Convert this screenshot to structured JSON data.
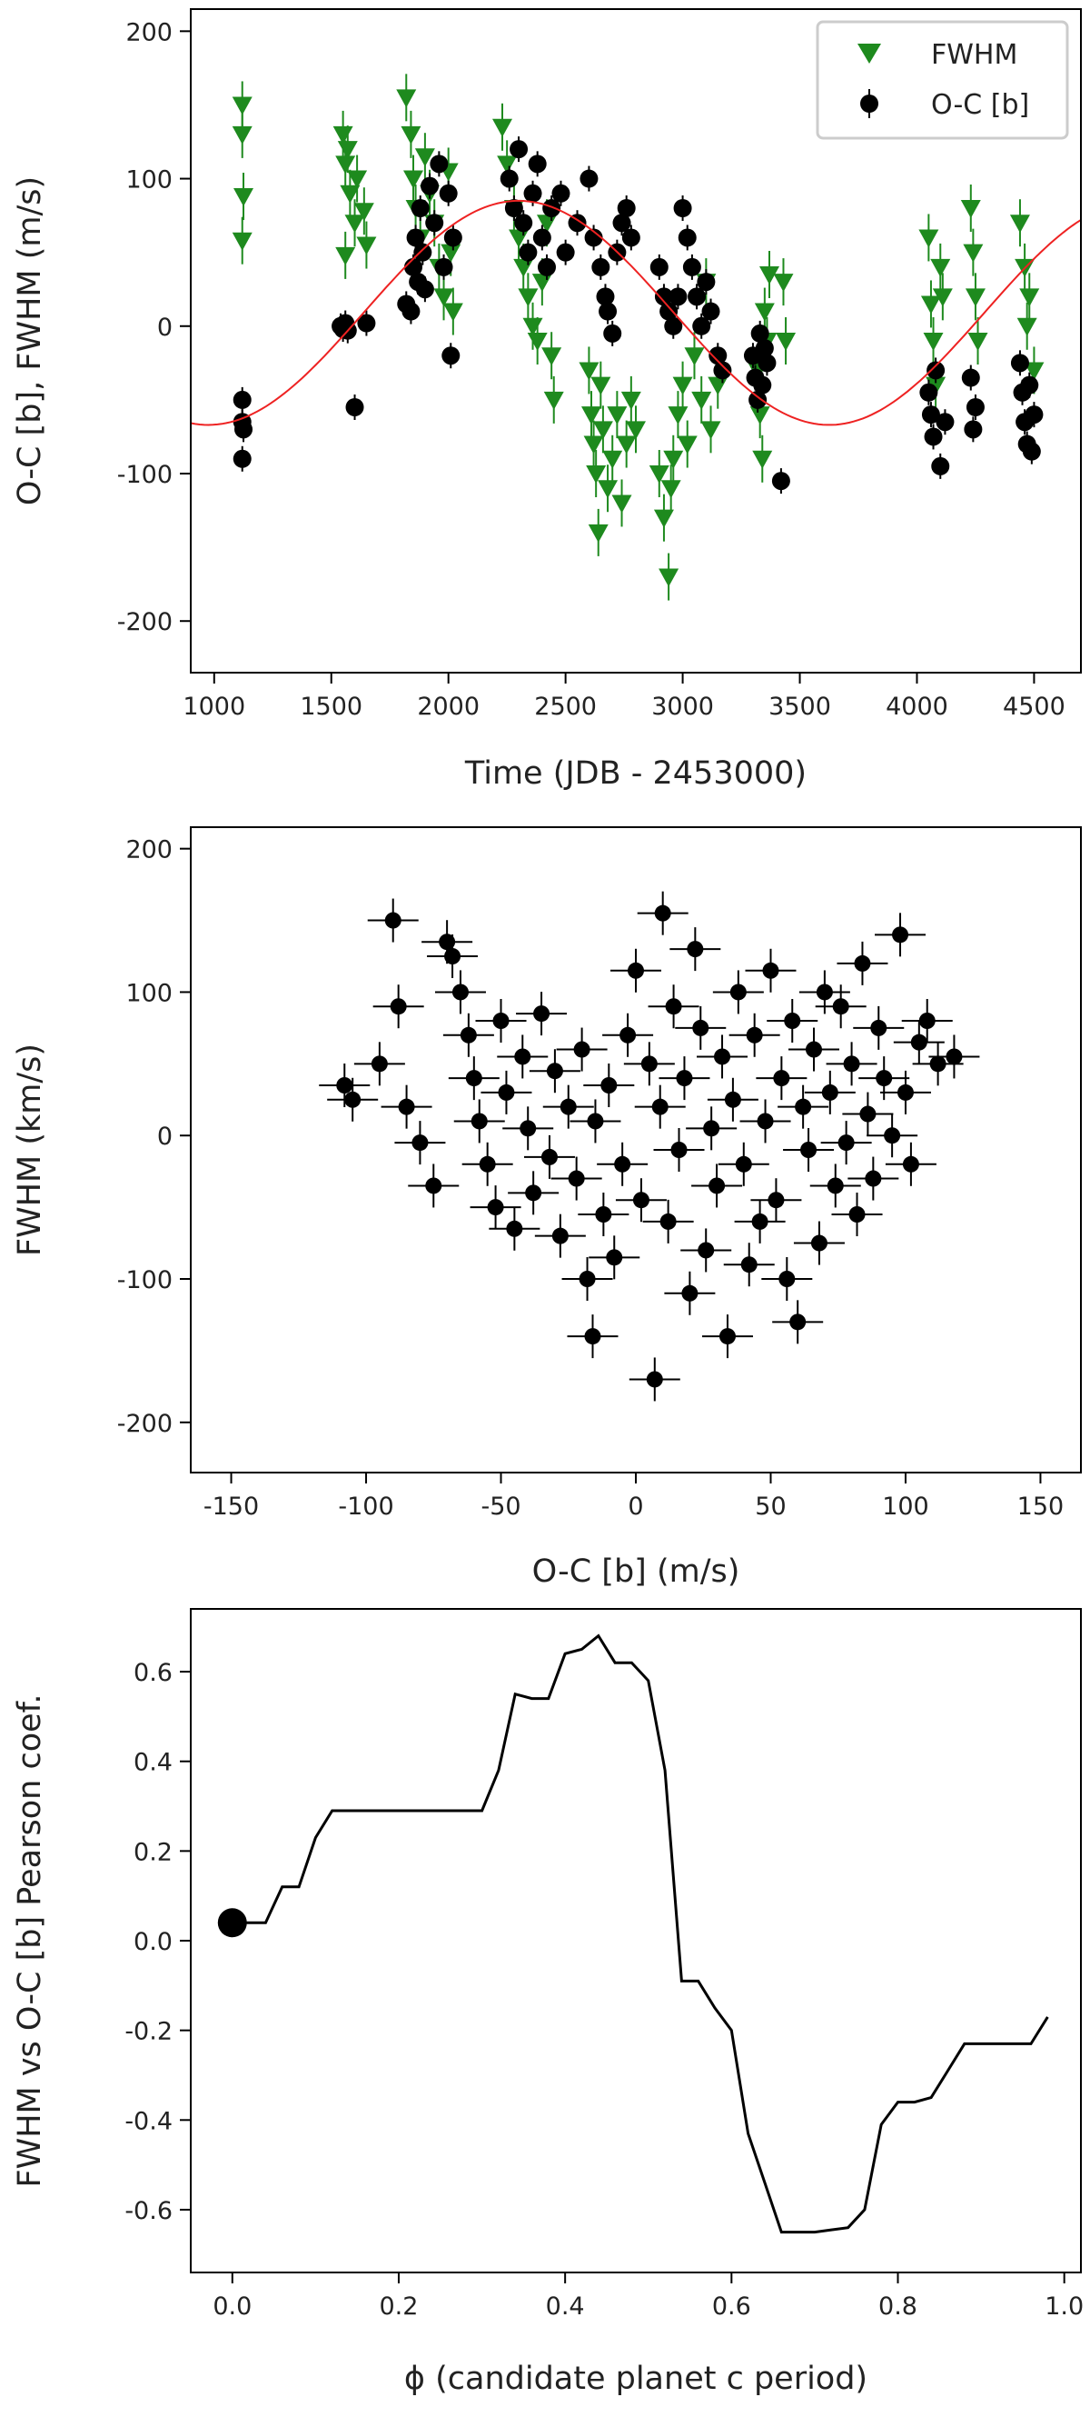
{
  "chart_data": [
    {
      "type": "scatter",
      "xlabel": "Time (JDB - 2453000)",
      "ylabel": "O-C [b], FWHM (m/s)",
      "xlim": [
        900,
        4700
      ],
      "ylim": [
        -235,
        215
      ],
      "xticks": [
        1000,
        1500,
        2000,
        2500,
        3000,
        3500,
        4000,
        4500
      ],
      "yticks": [
        -200,
        -100,
        0,
        100,
        200
      ],
      "legend_position": "top-right",
      "colors": {
        "fwhm": "#1e8a1e",
        "oc": "#000000",
        "fit": "#ee2222"
      },
      "series": [
        {
          "name": "FWHM",
          "marker": "triangle-down",
          "points": [
            [
              1120,
              150
            ],
            [
              1120,
              130
            ],
            [
              1125,
              88
            ],
            [
              1120,
              58
            ],
            [
              1550,
              130
            ],
            [
              1560,
              110
            ],
            [
              1570,
              120
            ],
            [
              1580,
              90
            ],
            [
              1560,
              48
            ],
            [
              1600,
              70
            ],
            [
              1610,
              100
            ],
            [
              1640,
              78
            ],
            [
              1650,
              55
            ],
            [
              1820,
              155
            ],
            [
              1840,
              130
            ],
            [
              1850,
              100
            ],
            [
              1860,
              80
            ],
            [
              1880,
              60
            ],
            [
              1900,
              115
            ],
            [
              1920,
              90
            ],
            [
              1940,
              70
            ],
            [
              1960,
              40
            ],
            [
              1980,
              20
            ],
            [
              2000,
              105
            ],
            [
              2010,
              50
            ],
            [
              2020,
              10
            ],
            [
              2230,
              135
            ],
            [
              2250,
              110
            ],
            [
              2280,
              80
            ],
            [
              2300,
              60
            ],
            [
              2320,
              40
            ],
            [
              2340,
              20
            ],
            [
              2360,
              0
            ],
            [
              2380,
              -10
            ],
            [
              2400,
              30
            ],
            [
              2420,
              70
            ],
            [
              2440,
              -20
            ],
            [
              2450,
              -50
            ],
            [
              2600,
              -30
            ],
            [
              2610,
              -60
            ],
            [
              2620,
              -80
            ],
            [
              2630,
              -100
            ],
            [
              2640,
              -140
            ],
            [
              2650,
              -40
            ],
            [
              2660,
              -70
            ],
            [
              2680,
              -110
            ],
            [
              2700,
              -90
            ],
            [
              2720,
              -60
            ],
            [
              2740,
              -120
            ],
            [
              2760,
              -80
            ],
            [
              2780,
              -50
            ],
            [
              2800,
              -70
            ],
            [
              2900,
              -100
            ],
            [
              2920,
              -130
            ],
            [
              2940,
              -170
            ],
            [
              2950,
              -110
            ],
            [
              2960,
              -90
            ],
            [
              2980,
              -60
            ],
            [
              3000,
              -40
            ],
            [
              3020,
              -80
            ],
            [
              3050,
              -20
            ],
            [
              3080,
              -50
            ],
            [
              3100,
              30
            ],
            [
              3120,
              -70
            ],
            [
              3150,
              -40
            ],
            [
              3320,
              -30
            ],
            [
              3330,
              -60
            ],
            [
              3340,
              -90
            ],
            [
              3350,
              10
            ],
            [
              3360,
              -10
            ],
            [
              3370,
              35
            ],
            [
              3430,
              30
            ],
            [
              3440,
              -10
            ],
            [
              4050,
              60
            ],
            [
              4060,
              15
            ],
            [
              4070,
              -10
            ],
            [
              4080,
              -40
            ],
            [
              4100,
              40
            ],
            [
              4110,
              20
            ],
            [
              4230,
              80
            ],
            [
              4240,
              50
            ],
            [
              4250,
              20
            ],
            [
              4260,
              -10
            ],
            [
              4440,
              70
            ],
            [
              4460,
              40
            ],
            [
              4470,
              0
            ],
            [
              4480,
              20
            ],
            [
              4500,
              -30
            ]
          ]
        },
        {
          "name": "O-C [b]",
          "marker": "circle",
          "points": [
            [
              1120,
              -50
            ],
            [
              1120,
              -65
            ],
            [
              1125,
              -70
            ],
            [
              1120,
              -90
            ],
            [
              1540,
              0
            ],
            [
              1550,
              -2
            ],
            [
              1560,
              2
            ],
            [
              1570,
              -3
            ],
            [
              1600,
              -55
            ],
            [
              1650,
              2
            ],
            [
              1820,
              15
            ],
            [
              1840,
              10
            ],
            [
              1850,
              40
            ],
            [
              1860,
              60
            ],
            [
              1870,
              30
            ],
            [
              1880,
              80
            ],
            [
              1890,
              50
            ],
            [
              1900,
              25
            ],
            [
              1920,
              95
            ],
            [
              1940,
              70
            ],
            [
              1960,
              110
            ],
            [
              1980,
              40
            ],
            [
              2000,
              90
            ],
            [
              2010,
              -20
            ],
            [
              2020,
              60
            ],
            [
              2260,
              100
            ],
            [
              2280,
              80
            ],
            [
              2300,
              120
            ],
            [
              2320,
              70
            ],
            [
              2340,
              50
            ],
            [
              2360,
              90
            ],
            [
              2380,
              110
            ],
            [
              2400,
              60
            ],
            [
              2420,
              40
            ],
            [
              2440,
              80
            ],
            [
              2480,
              90
            ],
            [
              2500,
              50
            ],
            [
              2550,
              70
            ],
            [
              2600,
              100
            ],
            [
              2620,
              60
            ],
            [
              2650,
              40
            ],
            [
              2670,
              20
            ],
            [
              2680,
              10
            ],
            [
              2700,
              -5
            ],
            [
              2720,
              50
            ],
            [
              2740,
              70
            ],
            [
              2760,
              80
            ],
            [
              2780,
              60
            ],
            [
              2900,
              40
            ],
            [
              2920,
              20
            ],
            [
              2940,
              10
            ],
            [
              2960,
              0
            ],
            [
              2980,
              20
            ],
            [
              3000,
              80
            ],
            [
              3020,
              60
            ],
            [
              3040,
              40
            ],
            [
              3060,
              20
            ],
            [
              3080,
              0
            ],
            [
              3100,
              30
            ],
            [
              3120,
              10
            ],
            [
              3150,
              -20
            ],
            [
              3170,
              -30
            ],
            [
              3300,
              -20
            ],
            [
              3310,
              -35
            ],
            [
              3320,
              -50
            ],
            [
              3330,
              -5
            ],
            [
              3340,
              -40
            ],
            [
              3350,
              -15
            ],
            [
              3360,
              -25
            ],
            [
              3420,
              -105
            ],
            [
              4050,
              -45
            ],
            [
              4060,
              -60
            ],
            [
              4070,
              -75
            ],
            [
              4080,
              -30
            ],
            [
              4100,
              -95
            ],
            [
              4120,
              -65
            ],
            [
              4230,
              -35
            ],
            [
              4240,
              -70
            ],
            [
              4250,
              -55
            ],
            [
              4440,
              -25
            ],
            [
              4450,
              -45
            ],
            [
              4460,
              -65
            ],
            [
              4470,
              -80
            ],
            [
              4480,
              -40
            ],
            [
              4490,
              -85
            ],
            [
              4500,
              -60
            ]
          ]
        }
      ],
      "fit_curve": {
        "amplitude": 76,
        "offset": 9,
        "period": 2650,
        "peak_x": 2300
      }
    },
    {
      "type": "scatter",
      "xlabel": "O-C [b] (m/s)",
      "ylabel": "FWHM (km/s)",
      "xlim": [
        -165,
        165
      ],
      "ylim": [
        -235,
        215
      ],
      "xticks": [
        -150,
        -100,
        -50,
        0,
        50,
        100,
        150
      ],
      "yticks": [
        -200,
        -100,
        0,
        100,
        200
      ],
      "points": [
        [
          -108,
          35
        ],
        [
          -105,
          25
        ],
        [
          -95,
          50
        ],
        [
          -90,
          150
        ],
        [
          -88,
          90
        ],
        [
          -85,
          20
        ],
        [
          -80,
          -5
        ],
        [
          -75,
          -35
        ],
        [
          -70,
          135
        ],
        [
          -68,
          125
        ],
        [
          -65,
          100
        ],
        [
          -62,
          70
        ],
        [
          -60,
          40
        ],
        [
          -58,
          10
        ],
        [
          -55,
          -20
        ],
        [
          -52,
          -50
        ],
        [
          -50,
          80
        ],
        [
          -48,
          30
        ],
        [
          -45,
          -65
        ],
        [
          -42,
          55
        ],
        [
          -40,
          5
        ],
        [
          -38,
          -40
        ],
        [
          -35,
          85
        ],
        [
          -32,
          -15
        ],
        [
          -30,
          45
        ],
        [
          -28,
          -70
        ],
        [
          -25,
          20
        ],
        [
          -22,
          -30
        ],
        [
          -20,
          60
        ],
        [
          -18,
          -100
        ],
        [
          -16,
          -140
        ],
        [
          -15,
          10
        ],
        [
          -12,
          -55
        ],
        [
          -10,
          35
        ],
        [
          -8,
          -85
        ],
        [
          -5,
          -20
        ],
        [
          -3,
          70
        ],
        [
          0,
          115
        ],
        [
          2,
          -45
        ],
        [
          5,
          50
        ],
        [
          7,
          -170
        ],
        [
          9,
          20
        ],
        [
          10,
          155
        ],
        [
          12,
          -60
        ],
        [
          14,
          90
        ],
        [
          16,
          -10
        ],
        [
          18,
          40
        ],
        [
          20,
          -110
        ],
        [
          22,
          130
        ],
        [
          24,
          75
        ],
        [
          26,
          -80
        ],
        [
          28,
          5
        ],
        [
          30,
          -35
        ],
        [
          32,
          55
        ],
        [
          34,
          -140
        ],
        [
          36,
          25
        ],
        [
          38,
          100
        ],
        [
          40,
          -20
        ],
        [
          42,
          -90
        ],
        [
          44,
          70
        ],
        [
          46,
          -60
        ],
        [
          48,
          10
        ],
        [
          50,
          115
        ],
        [
          52,
          -45
        ],
        [
          54,
          40
        ],
        [
          56,
          -100
        ],
        [
          58,
          80
        ],
        [
          60,
          -130
        ],
        [
          62,
          20
        ],
        [
          64,
          -10
        ],
        [
          66,
          60
        ],
        [
          68,
          -75
        ],
        [
          70,
          100
        ],
        [
          72,
          30
        ],
        [
          74,
          -35
        ],
        [
          76,
          90
        ],
        [
          78,
          -5
        ],
        [
          80,
          50
        ],
        [
          82,
          -55
        ],
        [
          84,
          120
        ],
        [
          86,
          15
        ],
        [
          88,
          -30
        ],
        [
          90,
          75
        ],
        [
          92,
          40
        ],
        [
          95,
          0
        ],
        [
          98,
          140
        ],
        [
          100,
          30
        ],
        [
          102,
          -20
        ],
        [
          105,
          65
        ],
        [
          108,
          80
        ],
        [
          112,
          50
        ],
        [
          118,
          55
        ]
      ]
    },
    {
      "type": "line",
      "xlabel": "ϕ (candidate planet c period)",
      "ylabel": "FWHM vs O-C [b] Pearson coef.",
      "xlim": [
        -0.05,
        1.02
      ],
      "ylim": [
        -0.74,
        0.74
      ],
      "xticks": [
        0.0,
        0.2,
        0.4,
        0.6,
        0.8,
        1.0
      ],
      "yticks": [
        -0.6,
        -0.4,
        -0.2,
        0.0,
        0.2,
        0.4,
        0.6
      ],
      "x": [
        0.0,
        0.04,
        0.06,
        0.08,
        0.1,
        0.12,
        0.14,
        0.16,
        0.18,
        0.2,
        0.22,
        0.24,
        0.26,
        0.28,
        0.3,
        0.32,
        0.34,
        0.36,
        0.38,
        0.4,
        0.42,
        0.44,
        0.46,
        0.48,
        0.5,
        0.52,
        0.54,
        0.56,
        0.58,
        0.6,
        0.62,
        0.64,
        0.66,
        0.68,
        0.7,
        0.72,
        0.74,
        0.76,
        0.78,
        0.8,
        0.82,
        0.84,
        0.86,
        0.88,
        0.9,
        0.92,
        0.94,
        0.96,
        0.98
      ],
      "y": [
        0.04,
        0.04,
        0.12,
        0.12,
        0.23,
        0.29,
        0.29,
        0.29,
        0.29,
        0.29,
        0.29,
        0.29,
        0.29,
        0.29,
        0.29,
        0.38,
        0.55,
        0.54,
        0.54,
        0.64,
        0.65,
        0.68,
        0.62,
        0.62,
        0.58,
        0.38,
        -0.09,
        -0.09,
        -0.15,
        -0.2,
        -0.43,
        -0.54,
        -0.65,
        -0.65,
        -0.65,
        -0.645,
        -0.64,
        -0.6,
        -0.41,
        -0.36,
        -0.36,
        -0.35,
        -0.29,
        -0.23,
        -0.23,
        -0.23,
        -0.23,
        -0.23,
        -0.17
      ],
      "highlight_point": [
        0.0,
        0.04
      ]
    }
  ]
}
